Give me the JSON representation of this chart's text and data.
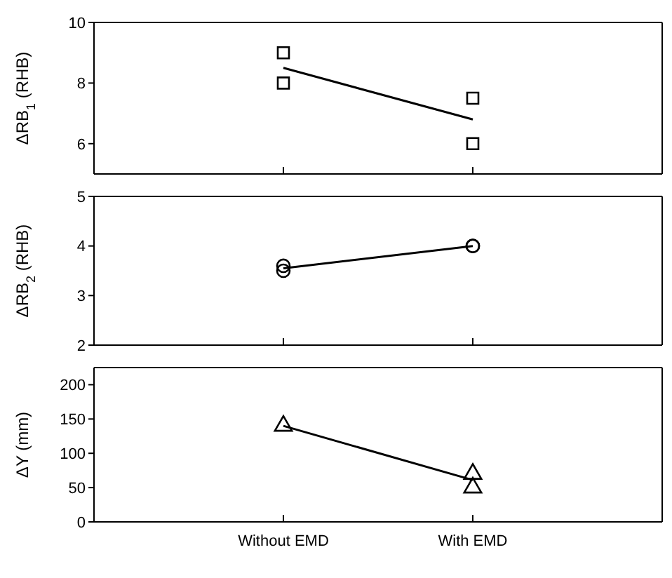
{
  "chart_data": [
    {
      "type": "scatter",
      "ylabel": "ΔRB$_{1}$ (RHB)",
      "categories": [
        "Without EMD",
        "With EMD"
      ],
      "ylim": [
        5,
        10
      ],
      "yticks": [
        6,
        8,
        10
      ],
      "tick_labels": "y",
      "series": [
        {
          "type": "scatter",
          "marker": "square",
          "color": "#000000",
          "x": [
            "Without EMD",
            "Without EMD",
            "With EMD",
            "With EMD"
          ],
          "values": [
            9,
            8,
            7.5,
            6
          ]
        },
        {
          "type": "line",
          "marker": "none",
          "color": "#000000",
          "x": [
            "Without EMD",
            "With EMD"
          ],
          "values": [
            8.5,
            6.8
          ]
        }
      ]
    },
    {
      "type": "scatter",
      "ylabel": "ΔRB$_{2}$ (RHB)",
      "categories": [
        "Without EMD",
        "With EMD"
      ],
      "ylim": [
        2,
        5
      ],
      "yticks": [
        2,
        3,
        4,
        5
      ],
      "tick_labels": "y",
      "series": [
        {
          "type": "scatter",
          "marker": "circle",
          "color": "#000000",
          "x": [
            "Without EMD",
            "Without EMD",
            "With EMD",
            "With EMD"
          ],
          "values": [
            3.6,
            3.5,
            4,
            4
          ]
        },
        {
          "type": "line",
          "marker": "none",
          "color": "#000000",
          "x": [
            "Without EMD",
            "With EMD"
          ],
          "values": [
            3.55,
            4
          ]
        }
      ]
    },
    {
      "type": "scatter",
      "ylabel": "ΔY (mm)",
      "categories": [
        "Without EMD",
        "With EMD"
      ],
      "ylim": [
        0,
        225
      ],
      "yticks": [
        0,
        50,
        100,
        150,
        200
      ],
      "series": [
        {
          "type": "scatter",
          "marker": "triangle",
          "color": "#000000",
          "x": [
            "Without EMD",
            "With EMD",
            "With EMD"
          ],
          "values": [
            140,
            70,
            50
          ]
        },
        {
          "type": "line",
          "marker": "none",
          "color": "#000000",
          "x": [
            "Without EMD",
            "With EMD"
          ],
          "values": [
            140,
            61
          ]
        }
      ]
    }
  ]
}
